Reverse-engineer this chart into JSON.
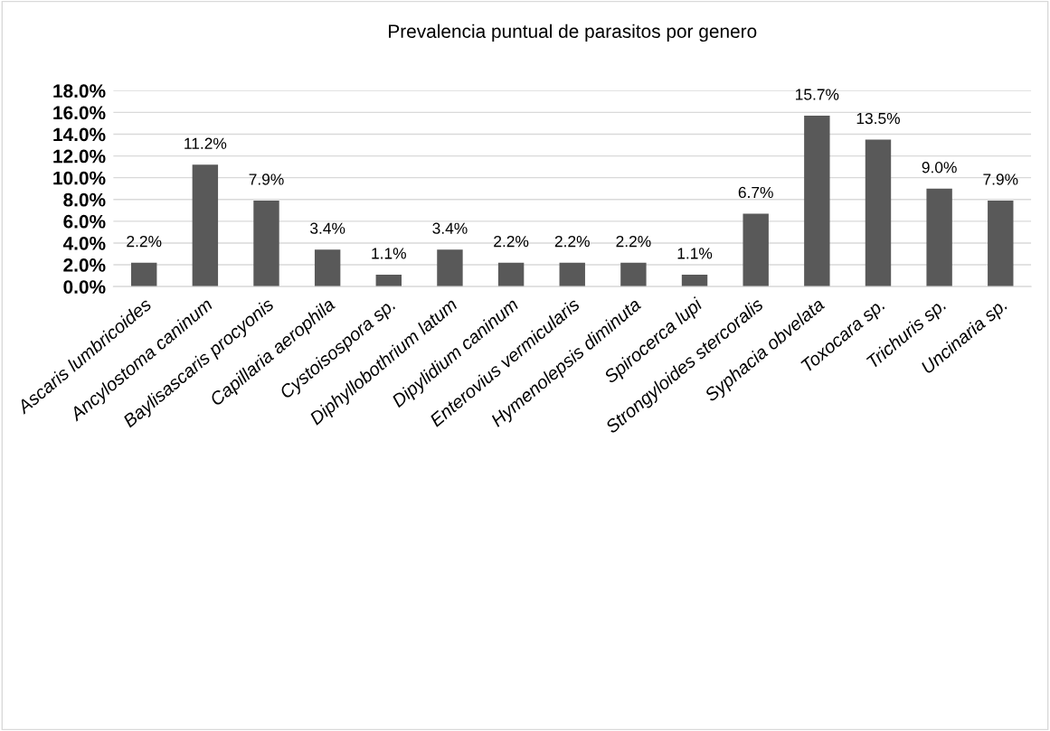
{
  "chart_data": {
    "type": "bar",
    "title": "Prevalencia puntual de parasitos por genero",
    "categories": [
      "Ascaris lumbricoides",
      "Ancylostoma caninum",
      "Baylisascaris procyonis",
      "Capillaria aerophila",
      "Cystoisospora sp.",
      "Diphyllobothrium latum",
      "Dipylidium caninum",
      "Enterovius vermicularis",
      "Hymenolepsis diminuta",
      "Spirocerca lupi",
      "Strongyloides stercoralis",
      "Syphacia obvelata",
      "Toxocara sp.",
      "Trichuris sp.",
      "Uncinaria sp."
    ],
    "values": [
      2.2,
      11.2,
      7.9,
      3.4,
      1.1,
      3.4,
      2.2,
      2.2,
      2.2,
      1.1,
      6.7,
      15.7,
      13.5,
      9.0,
      7.9
    ],
    "value_labels": [
      "2.2%",
      "11.2%",
      "7.9%",
      "3.4%",
      "1.1%",
      "3.4%",
      "2.2%",
      "2.2%",
      "2.2%",
      "1.1%",
      "6.7%",
      "15.7%",
      "13.5%",
      "9.0%",
      "7.9%"
    ],
    "color": "#595959",
    "ylim": [
      0,
      18
    ],
    "yticks": [
      {
        "value": 0,
        "label": "0.0%"
      },
      {
        "value": 2,
        "label": "2.0%"
      },
      {
        "value": 4,
        "label": "4.0%"
      },
      {
        "value": 6,
        "label": "6.0%"
      },
      {
        "value": 8,
        "label": "8.0%"
      },
      {
        "value": 10,
        "label": "10.0%"
      },
      {
        "value": 12,
        "label": "12.0%"
      },
      {
        "value": 14,
        "label": "14.0%"
      },
      {
        "value": 16,
        "label": "16.0%"
      },
      {
        "value": 18,
        "label": "18.0%"
      }
    ],
    "grid": "y"
  }
}
